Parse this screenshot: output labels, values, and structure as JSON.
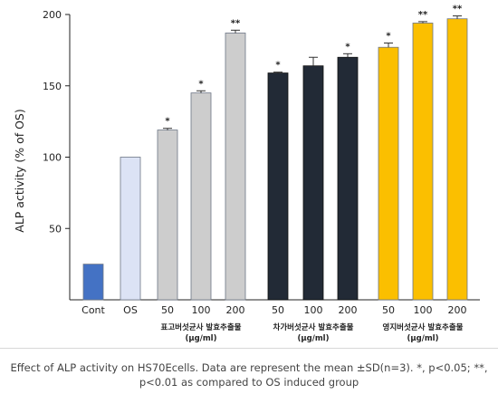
{
  "chart_data": {
    "type": "bar",
    "ylabel": "ALP activity (% of OS)",
    "ylim": [
      0,
      200
    ],
    "yticks": [
      50,
      100,
      150,
      200
    ],
    "categories": [
      "Cont",
      "OS",
      "50",
      "100",
      "200",
      "50",
      "100",
      "200",
      "50",
      "100",
      "200"
    ],
    "values": [
      25,
      100,
      119,
      145,
      187,
      159,
      164,
      170,
      177,
      194,
      197
    ],
    "errors": [
      0,
      0,
      1.2,
      1.5,
      2,
      0.6,
      6,
      2.5,
      3,
      1,
      2
    ],
    "significance": [
      "",
      "",
      "*",
      "*",
      "**",
      "*",
      "",
      "*",
      "*",
      "**",
      "**"
    ],
    "bar_colors": [
      "#4472c4",
      "#dce3f5",
      "#cdcdcd",
      "#cdcdcd",
      "#cdcdcd",
      "#222a36",
      "#222a36",
      "#222a36",
      "#fbbf00",
      "#fbbf00",
      "#fbbf00"
    ],
    "groups": [
      {
        "line1": "표고버섯균사 발효추출물",
        "line2": "(μg/ml)"
      },
      {
        "line1": "차가버섯균사 발효추출물",
        "line2": "(μg/ml)"
      },
      {
        "line1": "영지버섯균사 발효추출물",
        "line2": "(μg/ml)"
      }
    ]
  },
  "caption": "Effect of ALP activity on HS70Ecells. Data are represent the mean ±SD(n=3). *, p<0.05; **, p<0.01 as compared to OS induced group"
}
